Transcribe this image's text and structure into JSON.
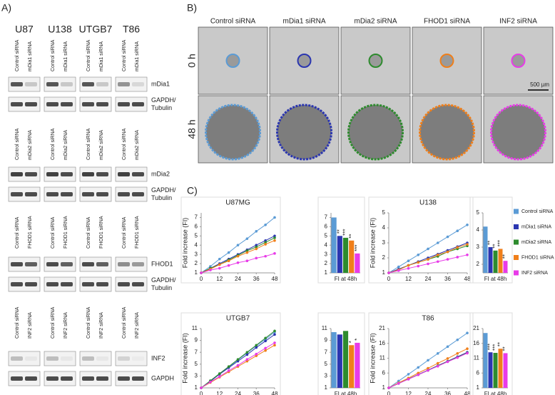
{
  "panel_a": {
    "label": "A)",
    "cell_lines": [
      "U87",
      "U138",
      "UTGB7",
      "T86"
    ],
    "groups": [
      {
        "lanes": [
          "Control siRNA",
          "mDia1 siRNA"
        ],
        "proteins": [
          [
            "mDia1"
          ],
          [
            "GAPDH/",
            "Tubulin"
          ]
        ]
      },
      {
        "lanes": [
          "Control siRNA",
          "mDia2 siRNA"
        ],
        "proteins": [
          [
            "mDia2"
          ],
          [
            "GAPDH/",
            "Tubulin"
          ]
        ]
      },
      {
        "lanes": [
          "Control siRNA",
          "FHOD1 siRNA"
        ],
        "proteins": [
          [
            "FHOD1"
          ],
          [
            "GAPDH/",
            "Tubulin"
          ]
        ]
      },
      {
        "lanes": [
          "Control siRNA",
          "INF2 siRNA"
        ],
        "proteins": [
          [
            "INF2"
          ],
          [
            "GAPDH"
          ]
        ]
      }
    ]
  },
  "panel_b": {
    "label": "B)",
    "columns": [
      "Control siRNA",
      "mDia1 siRNA",
      "mDia2 siRNA",
      "FHOD1 siRNA",
      "INF2 siRNA"
    ],
    "rows": [
      "0 h",
      "48 h"
    ],
    "scale_bar": "500 µm"
  },
  "panel_c": {
    "label": "C)"
  },
  "legend": [
    {
      "name": "Control siRNA",
      "color": "#5b9bd5"
    },
    {
      "name": "mDia1 siRNA",
      "color": "#2b36b0"
    },
    {
      "name": "mDia2 siRNA",
      "color": "#2e8b2e"
    },
    {
      "name": "FHOD1 siRNA",
      "color": "#f07f1a"
    },
    {
      "name": "INF2 siRNA",
      "color": "#e83be8"
    }
  ],
  "chart_data": [
    {
      "type": "line",
      "title": "U87MG",
      "ylabel": "Fold increase (FI)",
      "x": [
        0,
        6,
        12,
        18,
        24,
        30,
        36,
        42,
        48
      ],
      "xlim": [
        0,
        48
      ],
      "xticks": [
        0,
        12,
        24,
        36,
        48
      ],
      "ylim": [
        1,
        7.5
      ],
      "yticks": [
        1,
        2,
        3,
        4,
        5,
        6,
        7
      ],
      "series": [
        {
          "values": [
            1,
            1.7,
            2.5,
            3.2,
            4,
            4.7,
            5.5,
            6.2,
            7
          ]
        },
        {
          "values": [
            1,
            1.5,
            2,
            2.5,
            3,
            3.5,
            4,
            4.5,
            5
          ]
        },
        {
          "values": [
            1,
            1.5,
            1.9,
            2.4,
            2.9,
            3.4,
            3.8,
            4.3,
            4.8
          ]
        },
        {
          "values": [
            1,
            1.4,
            1.9,
            2.3,
            2.8,
            3.2,
            3.6,
            4.1,
            4.5
          ]
        },
        {
          "values": [
            1,
            1.3,
            1.5,
            1.8,
            2.1,
            2.3,
            2.6,
            2.8,
            3.1
          ]
        }
      ]
    },
    {
      "type": "bar",
      "xlabel": "FI at 48h",
      "values": [
        7,
        5,
        4.8,
        4.5,
        3.1
      ],
      "annotations": [
        null,
        "**",
        "***",
        "**",
        "***"
      ],
      "ylim": [
        1,
        7.5
      ],
      "yticks": [
        1,
        2,
        3,
        4,
        5,
        6,
        7
      ]
    },
    {
      "type": "line",
      "title": "U138",
      "ylabel": "Fold increase (FI)",
      "x": [
        0,
        6,
        12,
        18,
        24,
        30,
        36,
        42,
        48
      ],
      "xlim": [
        0,
        48
      ],
      "xticks": [
        0,
        12,
        24,
        36,
        48
      ],
      "ylim": [
        1,
        5
      ],
      "yticks": [
        1,
        2,
        3,
        4,
        5
      ],
      "series": [
        {
          "values": [
            1,
            1.4,
            1.8,
            2.2,
            2.6,
            3,
            3.4,
            3.8,
            4.2
          ]
        },
        {
          "values": [
            1,
            1.25,
            1.5,
            1.75,
            2,
            2.25,
            2.5,
            2.75,
            3
          ]
        },
        {
          "values": [
            1,
            1.2,
            1.5,
            1.7,
            1.9,
            2.1,
            2.4,
            2.6,
            2.8
          ]
        },
        {
          "values": [
            1,
            1.2,
            1.5,
            1.7,
            1.9,
            2.2,
            2.4,
            2.7,
            2.9
          ]
        },
        {
          "values": [
            1,
            1.15,
            1.3,
            1.45,
            1.6,
            1.75,
            1.9,
            2.05,
            2.2
          ]
        }
      ]
    },
    {
      "type": "bar",
      "xlabel": "FI at 48h",
      "values": [
        4.2,
        3,
        2.8,
        2.9,
        2.2
      ],
      "annotations": [
        null,
        "**",
        "**",
        "***",
        "**"
      ],
      "ylim": [
        1.5,
        5
      ],
      "yticks": [
        2,
        3,
        4,
        5
      ]
    },
    {
      "type": "line",
      "title": "UTGB7",
      "ylabel": "Fold increase (FI)",
      "x": [
        0,
        6,
        12,
        18,
        24,
        30,
        36,
        42,
        48
      ],
      "xlim": [
        0,
        48
      ],
      "xticks": [
        0,
        12,
        24,
        36,
        48
      ],
      "ylim": [
        1,
        11
      ],
      "yticks": [
        1,
        3,
        5,
        7,
        9,
        11
      ],
      "series": [
        {
          "values": [
            1,
            2.2,
            3.4,
            4.5,
            5.7,
            6.9,
            8.1,
            9.2,
            10.4
          ]
        },
        {
          "values": [
            1,
            2.1,
            3.3,
            4.4,
            5.5,
            6.6,
            7.8,
            8.9,
            10
          ]
        },
        {
          "values": [
            1,
            2.2,
            3.4,
            4.6,
            5.8,
            7,
            8.2,
            9.4,
            10.6
          ]
        },
        {
          "values": [
            1,
            1.9,
            2.8,
            3.7,
            4.6,
            5.5,
            6.4,
            7.3,
            8.2
          ]
        },
        {
          "values": [
            1,
            2,
            2.9,
            3.9,
            4.8,
            5.8,
            6.7,
            7.7,
            8.6
          ]
        }
      ]
    },
    {
      "type": "bar",
      "xlabel": "FI at 48h",
      "values": [
        10.4,
        10,
        10.6,
        8.2,
        8.6
      ],
      "annotations": [
        null,
        null,
        null,
        "*",
        "*"
      ],
      "ylim": [
        1,
        11
      ],
      "yticks": [
        1,
        3,
        5,
        7,
        9,
        11
      ]
    },
    {
      "type": "line",
      "title": "T86",
      "ylabel": "Fold increase (FI)",
      "x": [
        0,
        6,
        12,
        18,
        24,
        30,
        36,
        42,
        48
      ],
      "xlim": [
        0,
        48
      ],
      "xticks": [
        0,
        12,
        24,
        36,
        48
      ],
      "ylim": [
        1,
        21
      ],
      "yticks": [
        1,
        6,
        11,
        16,
        21
      ],
      "series": [
        {
          "values": [
            1,
            3.3,
            5.6,
            7.9,
            10.3,
            12.6,
            14.9,
            17.2,
            19.5
          ]
        },
        {
          "values": [
            1,
            2.5,
            4,
            5.5,
            7,
            8.5,
            10,
            11.5,
            13
          ]
        },
        {
          "values": [
            1,
            2.5,
            4,
            5.4,
            6.9,
            8.4,
            9.9,
            11.3,
            12.8
          ]
        },
        {
          "values": [
            1,
            2.7,
            4.3,
            6,
            7.6,
            9.3,
            10.9,
            12.6,
            14.2
          ]
        },
        {
          "values": [
            1,
            2.5,
            3.9,
            5.4,
            6.9,
            8.3,
            9.8,
            11.2,
            12.7
          ]
        }
      ]
    },
    {
      "type": "bar",
      "xlabel": "FI at 48h",
      "values": [
        19.5,
        13,
        12.8,
        14.2,
        12.7
      ],
      "annotations": [
        null,
        "***",
        "***",
        "**",
        "**"
      ],
      "ylim": [
        1,
        21
      ],
      "yticks": [
        1,
        6,
        11,
        16,
        21
      ]
    }
  ]
}
